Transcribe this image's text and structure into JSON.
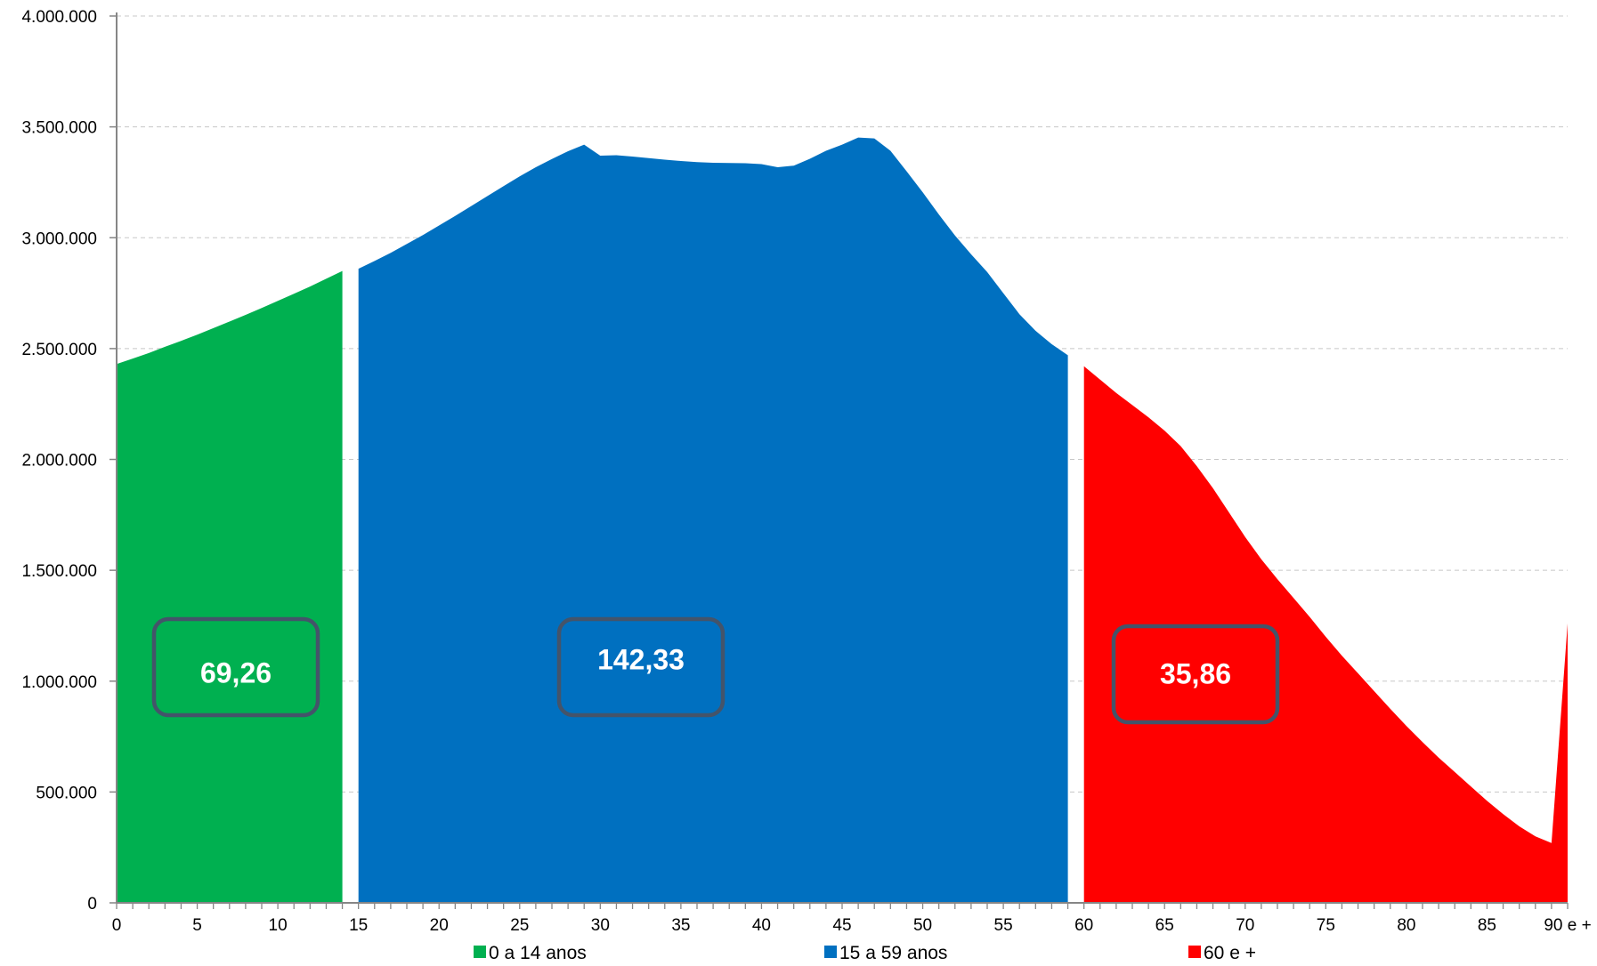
{
  "chart_data": {
    "type": "area",
    "x_tick_labels": [
      "0",
      "5",
      "10",
      "15",
      "20",
      "25",
      "30",
      "35",
      "40",
      "45",
      "50",
      "55",
      "60",
      "65",
      "70",
      "75",
      "80",
      "85",
      "90 e +"
    ],
    "y_tick_labels": [
      "0",
      "500.000",
      "1.000.000",
      "1.500.000",
      "2.000.000",
      "2.500.000",
      "3.000.000",
      "3.500.000",
      "4.000.000"
    ],
    "ylim": [
      0,
      4000000
    ],
    "xlim": [
      0,
      90
    ],
    "grid": true,
    "legend_position": "bottom",
    "series": [
      {
        "name": "0 a 14 anos",
        "color": "#00B050",
        "x": [
          0,
          1,
          2,
          3,
          4,
          5,
          6,
          7,
          8,
          9,
          10,
          11,
          12,
          13,
          14
        ],
        "values": [
          2430000,
          2455000,
          2480000,
          2508000,
          2535000,
          2563000,
          2592000,
          2622000,
          2652000,
          2683000,
          2715000,
          2747000,
          2780000,
          2815000,
          2850000
        ]
      },
      {
        "name": "15 a 59 anos",
        "color": "#0070C0",
        "x": [
          15,
          16,
          17,
          18,
          19,
          20,
          21,
          22,
          23,
          24,
          25,
          26,
          27,
          28,
          29,
          30,
          31,
          32,
          33,
          34,
          35,
          36,
          37,
          38,
          39,
          40,
          41,
          42,
          43,
          44,
          45,
          46,
          47,
          48,
          49,
          50,
          51,
          52,
          53,
          54,
          55,
          56,
          57,
          58,
          59
        ],
        "values": [
          2860000,
          2895000,
          2932000,
          2972000,
          3012000,
          3055000,
          3098000,
          3143000,
          3188000,
          3233000,
          3277000,
          3318000,
          3355000,
          3390000,
          3420000,
          3370000,
          3372000,
          3366000,
          3359000,
          3352000,
          3346000,
          3341000,
          3338000,
          3337000,
          3336000,
          3332000,
          3318000,
          3325000,
          3356000,
          3392000,
          3420000,
          3452000,
          3448000,
          3392000,
          3300000,
          3205000,
          3105000,
          3010000,
          2925000,
          2845000,
          2750000,
          2655000,
          2580000,
          2520000,
          2470000
        ]
      },
      {
        "name": "60 e +",
        "color": "#FF0000",
        "x": [
          60,
          61,
          62,
          63,
          64,
          65,
          66,
          67,
          68,
          69,
          70,
          71,
          72,
          73,
          74,
          75,
          76,
          77,
          78,
          79,
          80,
          81,
          82,
          83,
          84,
          85,
          86,
          87,
          88,
          89,
          90
        ],
        "values": [
          2420000,
          2360000,
          2300000,
          2245000,
          2190000,
          2130000,
          2060000,
          1970000,
          1870000,
          1760000,
          1650000,
          1550000,
          1460000,
          1375000,
          1290000,
          1200000,
          1115000,
          1035000,
          955000,
          875000,
          798000,
          725000,
          655000,
          590000,
          525000,
          460000,
          400000,
          345000,
          300000,
          270000,
          1260000
        ]
      }
    ],
    "annotations": [
      {
        "text": "69,26",
        "series": "0 a 14 anos"
      },
      {
        "text": "142,33",
        "series": "15 a 59 anos"
      },
      {
        "text": "35,86",
        "series": "60 e +"
      }
    ]
  }
}
